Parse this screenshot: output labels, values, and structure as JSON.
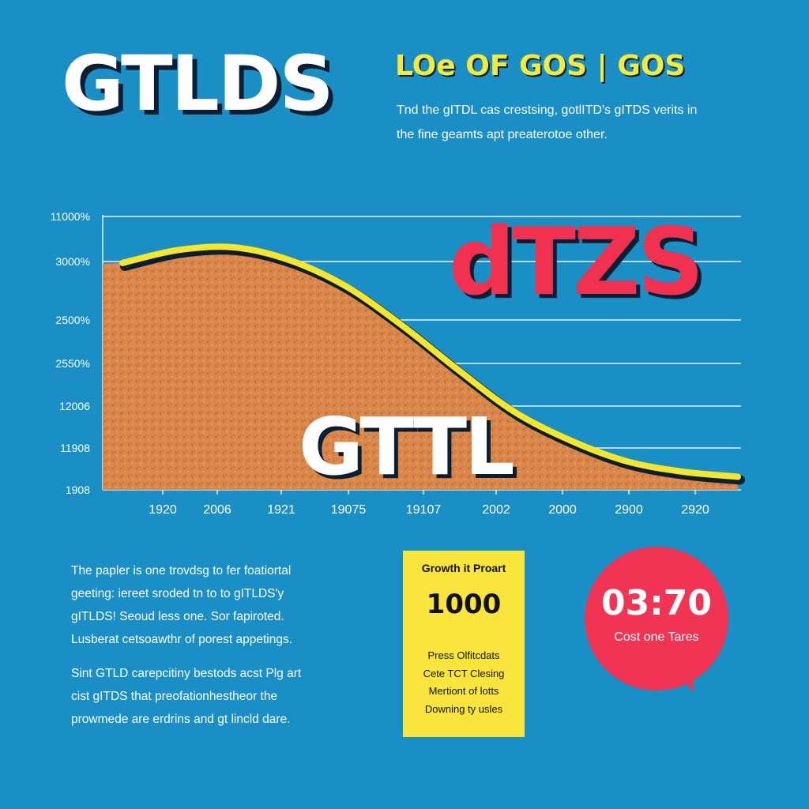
{
  "header": {
    "title": "GTLDS",
    "subtitle": "LOe OF GOS | GOS",
    "intro_lines": [
      "Tnd the gITDL cas crestsing, gotlITD's gITDS verits in",
      "the fine geamts apt preaterotoe other."
    ]
  },
  "overlay": {
    "red_text": "dTZS",
    "white_text": "GTTL"
  },
  "chart_data": {
    "type": "area",
    "y_tick_labels": [
      "11000%",
      "3000%",
      "2500%",
      "2550%",
      "12006",
      "11908",
      "1908"
    ],
    "x_tick_labels": [
      "1920",
      "2006",
      "1921",
      "19075",
      "19107",
      "2002",
      "2000",
      "2900",
      "2920"
    ],
    "series": [
      {
        "values": [
          0.87,
          0.92,
          0.93,
          0.88,
          0.78,
          0.63,
          0.46,
          0.3,
          0.19,
          0.11,
          0.07,
          0.05
        ]
      }
    ],
    "grid": true,
    "legend": "none",
    "colors": {
      "line": "#f5e62c",
      "fill": "#d9874b",
      "grid": "#e8f1f8",
      "axis_text": "#ffffff"
    }
  },
  "body_text": {
    "paragraph1": [
      "The papler is one trovdsg to fer foatiortal",
      "geeting: iereet sroded tn to to gITLDS'y",
      "gITLDS! Seoud less one. Sor fapiroted.",
      "Lusberat cetsoawthr of porest appetings."
    ],
    "paragraph2": [
      "Sint GTLD carepcitiny bestods acst Plg art",
      "cist gITDS that preofationhestheor the",
      "prowmede are erdrins and gt lincld dare."
    ]
  },
  "card": {
    "title": "Growth it Proart",
    "value": "1000",
    "items": [
      "Press Olfitcdats",
      "Cete TCT Clesing",
      "Mertiont of lotts",
      "Downing ty usles"
    ]
  },
  "bubble": {
    "value": "03:70",
    "label": "Cost one Tares"
  }
}
